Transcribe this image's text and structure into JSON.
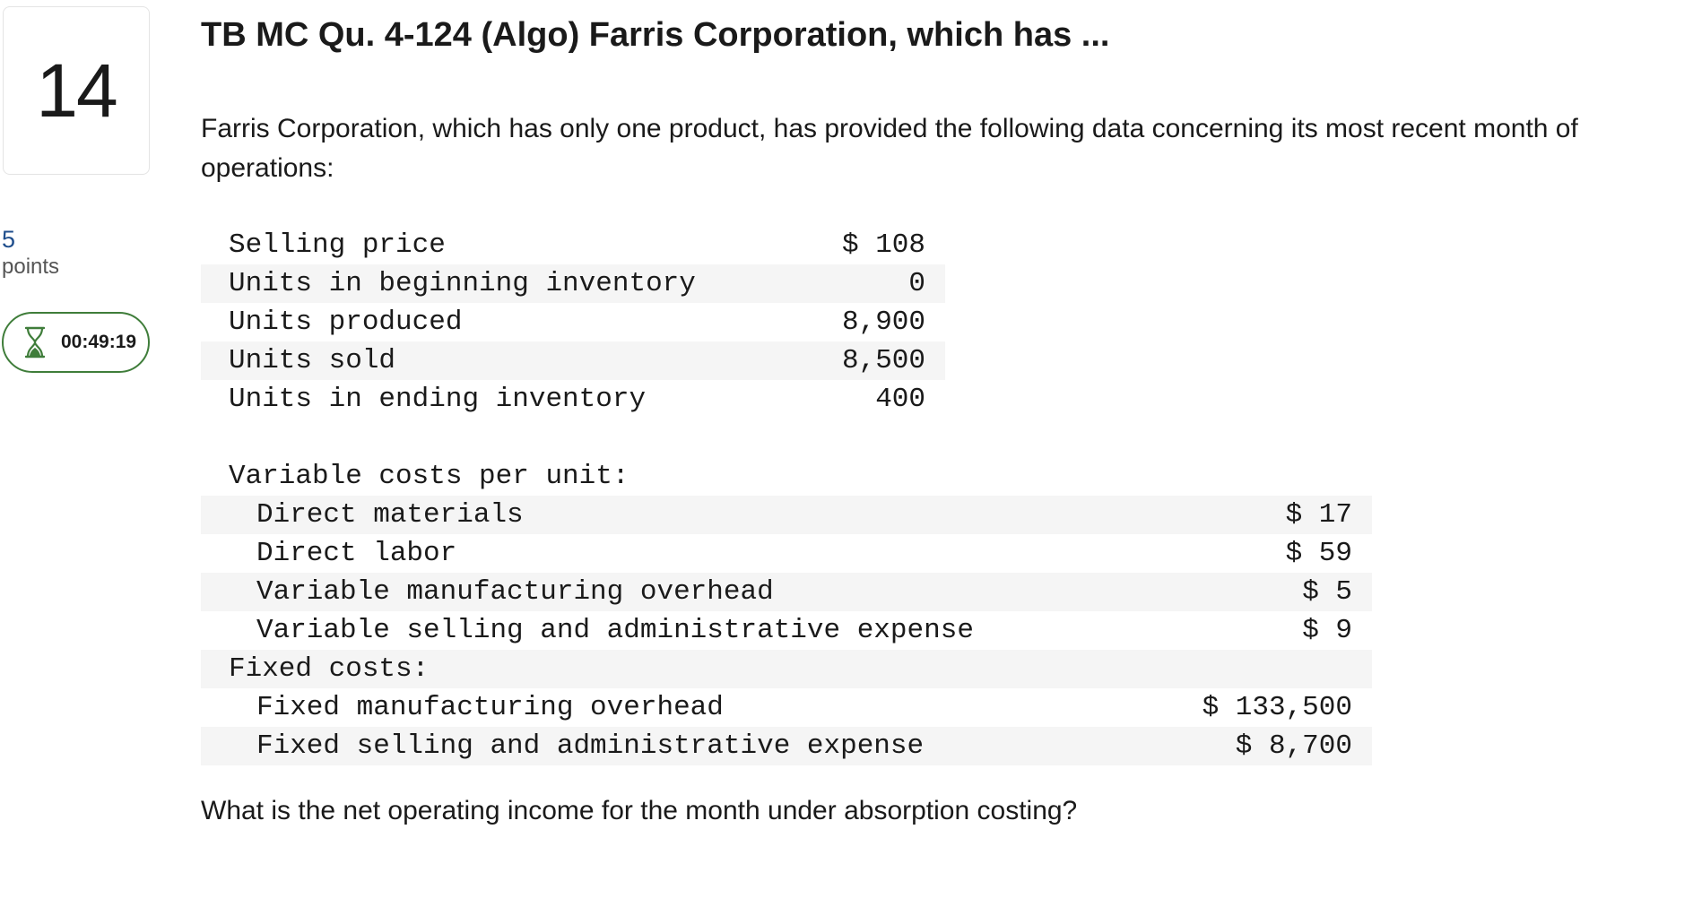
{
  "question_number": "14",
  "points": {
    "value": "5",
    "label": "points"
  },
  "timer": {
    "icon": "hourglass-icon",
    "value": "00:49:19"
  },
  "title": "TB MC Qu. 4-124 (Algo) Farris Corporation, which has ...",
  "intro": "Farris Corporation, which has only one product, has provided the following data concerning its most recent month of operations:",
  "table1": [
    {
      "label": "Selling price",
      "value": "$ 108"
    },
    {
      "label": "Units in beginning inventory",
      "value": "0"
    },
    {
      "label": "Units produced",
      "value": "8,900"
    },
    {
      "label": "Units sold",
      "value": "8,500"
    },
    {
      "label": "Units in ending inventory",
      "value": "400"
    }
  ],
  "table2": [
    {
      "label": "Variable costs per unit:",
      "value": ""
    },
    {
      "label": "Direct materials",
      "value": "$ 17"
    },
    {
      "label": "Direct labor",
      "value": "$ 59"
    },
    {
      "label": "Variable manufacturing overhead",
      "value": "$ 5"
    },
    {
      "label": "Variable selling and administrative expense",
      "value": "$ 9"
    },
    {
      "label": "Fixed costs:",
      "value": ""
    },
    {
      "label": "Fixed manufacturing overhead",
      "value": "$ 133,500"
    },
    {
      "label": "Fixed selling and administrative expense",
      "value": "$ 8,700"
    }
  ],
  "question": "What is the net operating income for the month under absorption costing?",
  "colors": {
    "timer_border": "#3f7d3a",
    "points_number": "#1f4e8c",
    "row_shade": "#f5f5f5"
  }
}
